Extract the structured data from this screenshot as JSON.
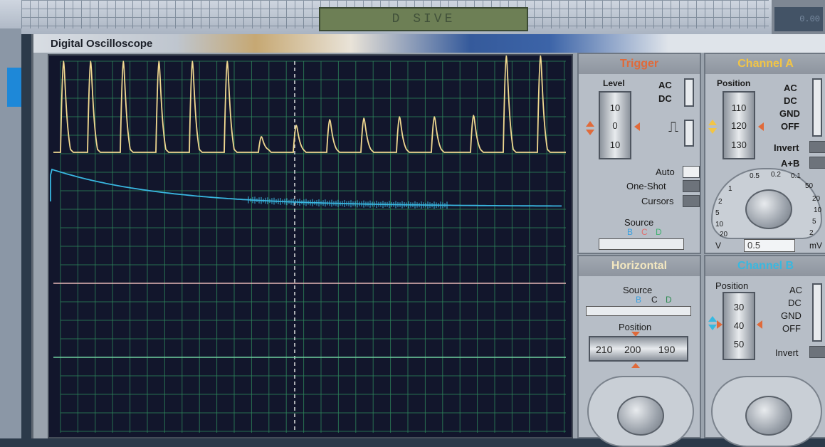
{
  "window": {
    "title": "Digital Oscilloscope"
  },
  "background": {
    "lcd_text": "D SIVE",
    "right_lcd": "0.00"
  },
  "trigger": {
    "header": "Trigger",
    "level_label": "Level",
    "drum": [
      "10",
      "0",
      "10"
    ],
    "ac": "AC",
    "dc": "DC",
    "auto": "Auto",
    "one_shot": "One-Shot",
    "cursors": "Cursors",
    "source_label": "Source",
    "source_options": [
      "B",
      "C",
      "D"
    ]
  },
  "channel_a": {
    "header": "Channel A",
    "position_label": "Position",
    "drum": [
      "110",
      "120",
      "130"
    ],
    "coupling": [
      "AC",
      "DC",
      "GND",
      "OFF"
    ],
    "invert": "Invert",
    "a_plus_b": "A+B",
    "dial_ticks": [
      "0.5",
      "0.2",
      "0.1",
      "50",
      "20",
      "10",
      "5",
      "2",
      "1",
      "2",
      "5",
      "10",
      "20"
    ],
    "units_v": "V",
    "units_mv": "mV",
    "value": "0.5"
  },
  "horizontal": {
    "header": "Horizontal",
    "source_label": "Source",
    "source_options": [
      "B",
      "C",
      "D"
    ],
    "position_label": "Position",
    "position_scale": [
      "210",
      "200",
      "190"
    ]
  },
  "channel_b": {
    "header": "Channel B",
    "position_label": "Position",
    "drum": [
      "30",
      "40",
      "50"
    ],
    "coupling": [
      "AC",
      "DC",
      "GND",
      "OFF"
    ],
    "invert": "Invert"
  },
  "colors": {
    "trace_a": "#f0d890",
    "trace_b": "#39b6e0",
    "trace_c": "#e8b8b8",
    "trace_d": "#6fd0a0",
    "grid": "#2f8a5c",
    "trigger_header": "#e06a3a",
    "channel_a_header": "#f2c545",
    "horizontal_header": "#f4e8c0",
    "channel_b_header": "#38b8e0"
  }
}
